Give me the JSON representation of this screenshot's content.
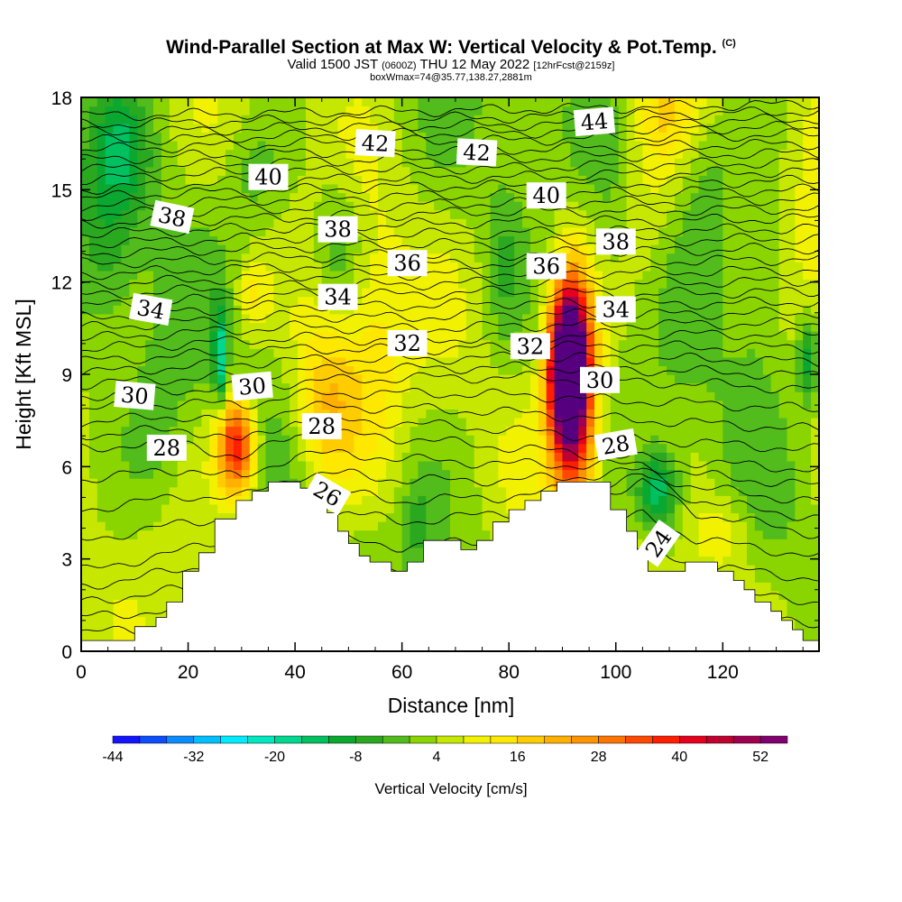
{
  "title": {
    "main": "Wind-Parallel Section at Max W: Vertical Velocity & Pot.Temp.",
    "copyright": "(C)",
    "valid_prefix": "Valid 1500 JST",
    "valid_utc": "(0600Z)",
    "valid_date": "THU 12 May 2022",
    "forecast": "[12hrFcst@2159z]",
    "box": "boxWmax=74@35.77,138.27,2881m"
  },
  "chart_data": {
    "type": "heatmap",
    "xlabel": "Distance [nm]",
    "ylabel": "Height [Kft MSL]",
    "xlim": [
      0,
      138
    ],
    "ylim": [
      0,
      18
    ],
    "x_ticks": [
      0,
      20,
      40,
      60,
      80,
      100,
      120
    ],
    "y_ticks": [
      0,
      3,
      6,
      9,
      12,
      15,
      18
    ],
    "colorbar": {
      "label": "Vertical Velocity [cm/s]",
      "ticks": [
        -44,
        -32,
        -20,
        -8,
        4,
        16,
        28,
        40,
        52
      ],
      "levels": [
        -44,
        -40,
        -36,
        -32,
        -28,
        -24,
        -20,
        -16,
        -12,
        -8,
        -4,
        0,
        4,
        8,
        12,
        16,
        20,
        24,
        28,
        32,
        36,
        40,
        44,
        48,
        52,
        56
      ],
      "colors": [
        "#1414ff",
        "#0b4dff",
        "#0a8bff",
        "#00bfff",
        "#00eaff",
        "#00e8bf",
        "#00d890",
        "#00c060",
        "#0aa830",
        "#2aa820",
        "#52bc1c",
        "#8ad400",
        "#c6e800",
        "#f2f200",
        "#ffe800",
        "#ffcc00",
        "#ffb000",
        "#ff9400",
        "#ff7400",
        "#ff4800",
        "#ff1e00",
        "#e6001e",
        "#c0002e",
        "#a00050",
        "#80006e",
        "#560080"
      ]
    },
    "terrain": [
      [
        0,
        0.35
      ],
      [
        10,
        0.35
      ],
      [
        10,
        0.8
      ],
      [
        14,
        0.8
      ],
      [
        14,
        1.1
      ],
      [
        16,
        1.1
      ],
      [
        16,
        1.6
      ],
      [
        19,
        1.6
      ],
      [
        19,
        2.6
      ],
      [
        22,
        2.6
      ],
      [
        22,
        3.2
      ],
      [
        25,
        3.2
      ],
      [
        25,
        4.3
      ],
      [
        29,
        4.3
      ],
      [
        29,
        4.9
      ],
      [
        32,
        4.9
      ],
      [
        32,
        5.2
      ],
      [
        35,
        5.2
      ],
      [
        35,
        5.5
      ],
      [
        41,
        5.5
      ],
      [
        41,
        5.3
      ],
      [
        44,
        5.3
      ],
      [
        44,
        4.9
      ],
      [
        46,
        4.9
      ],
      [
        46,
        4.5
      ],
      [
        48,
        4.5
      ],
      [
        48,
        3.9
      ],
      [
        50,
        3.9
      ],
      [
        50,
        3.5
      ],
      [
        52,
        3.5
      ],
      [
        52,
        3.1
      ],
      [
        54,
        3.1
      ],
      [
        54,
        2.9
      ],
      [
        58,
        2.9
      ],
      [
        58,
        2.6
      ],
      [
        61,
        2.6
      ],
      [
        61,
        2.9
      ],
      [
        64,
        2.9
      ],
      [
        64,
        3.6
      ],
      [
        71,
        3.6
      ],
      [
        71,
        3.3
      ],
      [
        74,
        3.3
      ],
      [
        74,
        3.6
      ],
      [
        77,
        3.6
      ],
      [
        77,
        4.2
      ],
      [
        80,
        4.2
      ],
      [
        80,
        4.6
      ],
      [
        83,
        4.6
      ],
      [
        83,
        4.9
      ],
      [
        86,
        4.9
      ],
      [
        86,
        5.2
      ],
      [
        89,
        5.2
      ],
      [
        89,
        5.5
      ],
      [
        99,
        5.5
      ],
      [
        99,
        4.6
      ],
      [
        102,
        4.6
      ],
      [
        102,
        3.9
      ],
      [
        104,
        3.9
      ],
      [
        104,
        3.3
      ],
      [
        106,
        3.3
      ],
      [
        106,
        2.6
      ],
      [
        113,
        2.6
      ],
      [
        113,
        2.9
      ],
      [
        119,
        2.9
      ],
      [
        119,
        2.6
      ],
      [
        122,
        2.6
      ],
      [
        122,
        2.3
      ],
      [
        124,
        2.3
      ],
      [
        124,
        2.0
      ],
      [
        126,
        2.0
      ],
      [
        126,
        1.6
      ],
      [
        129,
        1.6
      ],
      [
        129,
        1.3
      ],
      [
        131,
        1.3
      ],
      [
        131,
        1.0
      ],
      [
        133,
        1.0
      ],
      [
        133,
        0.7
      ],
      [
        135,
        0.7
      ],
      [
        135,
        0.35
      ],
      [
        138,
        0.35
      ]
    ],
    "contours": [
      {
        "theta": 24,
        "path": [
          [
            0,
            0.6
          ],
          [
            25,
            0.8
          ],
          [
            60,
            1.0
          ],
          [
            100,
            1.2
          ],
          [
            138,
            0.9
          ]
        ]
      },
      {
        "theta": 26,
        "path": [
          [
            0,
            2.6
          ],
          [
            20,
            3.3
          ],
          [
            40,
            4.3
          ],
          [
            50,
            4.5
          ],
          [
            60,
            4.2
          ],
          [
            80,
            4.5
          ],
          [
            95,
            5.0
          ],
          [
            105,
            5.5
          ],
          [
            115,
            4.5
          ],
          [
            138,
            3.8
          ]
        ]
      },
      {
        "theta": 28,
        "path": [
          [
            0,
            6.6
          ],
          [
            20,
            6.8
          ],
          [
            30,
            6.2
          ],
          [
            40,
            7.1
          ],
          [
            55,
            7.0
          ],
          [
            75,
            6.7
          ],
          [
            95,
            6.4
          ],
          [
            110,
            6.2
          ],
          [
            138,
            5.9
          ]
        ]
      },
      {
        "theta": 30,
        "path": [
          [
            0,
            8.3
          ],
          [
            20,
            8.5
          ],
          [
            30,
            8.6
          ],
          [
            45,
            8.8
          ],
          [
            65,
            8.9
          ],
          [
            85,
            8.9
          ],
          [
            95,
            8.8
          ],
          [
            115,
            8.7
          ],
          [
            138,
            8.5
          ]
        ]
      },
      {
        "theta": 32,
        "path": [
          [
            0,
            9.8
          ],
          [
            20,
            10.0
          ],
          [
            40,
            10.2
          ],
          [
            60,
            10.1
          ],
          [
            80,
            10.2
          ],
          [
            100,
            10.3
          ],
          [
            138,
            10.3
          ]
        ]
      },
      {
        "theta": 34,
        "path": [
          [
            0,
            11.2
          ],
          [
            20,
            11.4
          ],
          [
            40,
            11.6
          ],
          [
            60,
            11.6
          ],
          [
            80,
            11.7
          ],
          [
            100,
            11.6
          ],
          [
            138,
            11.7
          ]
        ]
      },
      {
        "theta": 36,
        "path": [
          [
            0,
            12.6
          ],
          [
            20,
            12.7
          ],
          [
            40,
            12.8
          ],
          [
            60,
            12.9
          ],
          [
            80,
            12.9
          ],
          [
            100,
            13.0
          ],
          [
            138,
            13.1
          ]
        ]
      },
      {
        "theta": 38,
        "path": [
          [
            0,
            13.9
          ],
          [
            20,
            14.0
          ],
          [
            40,
            14.1
          ],
          [
            60,
            14.2
          ],
          [
            80,
            14.3
          ],
          [
            100,
            14.3
          ],
          [
            138,
            14.4
          ]
        ]
      },
      {
        "theta": 40,
        "path": [
          [
            0,
            15.0
          ],
          [
            20,
            15.2
          ],
          [
            40,
            15.3
          ],
          [
            60,
            15.4
          ],
          [
            80,
            15.4
          ],
          [
            100,
            15.5
          ],
          [
            138,
            15.6
          ]
        ]
      },
      {
        "theta": 42,
        "path": [
          [
            0,
            16.3
          ],
          [
            20,
            16.4
          ],
          [
            40,
            16.5
          ],
          [
            60,
            16.6
          ],
          [
            80,
            16.6
          ],
          [
            100,
            16.7
          ],
          [
            138,
            16.8
          ]
        ]
      },
      {
        "theta": 44,
        "path": [
          [
            0,
            17.4
          ],
          [
            40,
            17.5
          ],
          [
            80,
            17.6
          ],
          [
            110,
            17.7
          ],
          [
            138,
            17.8
          ]
        ]
      }
    ],
    "contour_labels": [
      {
        "text": "44",
        "x": 96,
        "y": 17.2,
        "rot": -5
      },
      {
        "text": "42",
        "x": 55,
        "y": 16.5,
        "rot": 3
      },
      {
        "text": "42",
        "x": 74,
        "y": 16.2,
        "rot": 3
      },
      {
        "text": "40",
        "x": 35,
        "y": 15.4,
        "rot": 0
      },
      {
        "text": "40",
        "x": 87,
        "y": 14.8,
        "rot": 0
      },
      {
        "text": "38",
        "x": 17,
        "y": 14.1,
        "rot": 12
      },
      {
        "text": "38",
        "x": 48,
        "y": 13.7,
        "rot": 0
      },
      {
        "text": "38",
        "x": 100,
        "y": 13.3,
        "rot": 0
      },
      {
        "text": "36",
        "x": 61,
        "y": 12.6,
        "rot": 0
      },
      {
        "text": "36",
        "x": 87,
        "y": 12.5,
        "rot": 0
      },
      {
        "text": "34",
        "x": 13,
        "y": 11.1,
        "rot": 10
      },
      {
        "text": "34",
        "x": 48,
        "y": 11.5,
        "rot": 0
      },
      {
        "text": "34",
        "x": 100,
        "y": 11.1,
        "rot": 0
      },
      {
        "text": "32",
        "x": 61,
        "y": 10.0,
        "rot": 0
      },
      {
        "text": "32",
        "x": 84,
        "y": 9.9,
        "rot": 0
      },
      {
        "text": "30",
        "x": 32,
        "y": 8.6,
        "rot": -5
      },
      {
        "text": "30",
        "x": 10,
        "y": 8.3,
        "rot": 5
      },
      {
        "text": "30",
        "x": 97,
        "y": 8.8,
        "rot": 0
      },
      {
        "text": "28",
        "x": 45,
        "y": 7.3,
        "rot": 0
      },
      {
        "text": "28",
        "x": 16,
        "y": 6.6,
        "rot": 0
      },
      {
        "text": "28",
        "x": 100,
        "y": 6.7,
        "rot": -10
      },
      {
        "text": "26",
        "x": 46,
        "y": 5.1,
        "rot": 30
      },
      {
        "text": "24",
        "x": 108,
        "y": 3.5,
        "rot": -55
      }
    ],
    "features": [
      {
        "x": 91,
        "y": 9.2,
        "w": 56,
        "rx": 3.5,
        "ry": 2.4
      },
      {
        "x": 92,
        "y": 8.5,
        "w": 40,
        "rx": 4,
        "ry": 4
      },
      {
        "x": 29,
        "y": 6.7,
        "w": 38,
        "rx": 3.5,
        "ry": 1.6
      },
      {
        "x": 46,
        "y": 8.0,
        "w": 18,
        "rx": 6,
        "ry": 3
      },
      {
        "x": 32,
        "y": 11.5,
        "w": 10,
        "rx": 3,
        "ry": 1.2
      },
      {
        "x": 55,
        "y": 9.5,
        "w": 10,
        "rx": 6,
        "ry": 4
      },
      {
        "x": 100,
        "y": 2.8,
        "w": 10,
        "rx": 4,
        "ry": 1
      },
      {
        "x": 120,
        "y": 3.8,
        "w": 8,
        "rx": 5,
        "ry": 1.2
      },
      {
        "x": 106,
        "y": 14.5,
        "w": 6,
        "rx": 5,
        "ry": 4
      },
      {
        "x": 110,
        "y": 17.5,
        "w": 8,
        "rx": 6,
        "ry": 1.5
      },
      {
        "x": 138,
        "y": 11.0,
        "w": 6,
        "rx": 6,
        "ry": 6
      },
      {
        "x": 63,
        "y": 4.0,
        "w": -6,
        "rx": 2.5,
        "ry": 1.5
      },
      {
        "x": 26,
        "y": 9.5,
        "w": -20,
        "rx": 1.2,
        "ry": 1.6
      },
      {
        "x": 108,
        "y": 5.2,
        "w": -20,
        "rx": 4,
        "ry": 1.4
      },
      {
        "x": 5,
        "y": 13.5,
        "w": -8,
        "rx": 6,
        "ry": 3.5
      },
      {
        "x": 8,
        "y": 16.5,
        "w": -8,
        "rx": 5,
        "ry": 2
      },
      {
        "x": 48,
        "y": 13.2,
        "w": -8,
        "rx": 4,
        "ry": 2
      },
      {
        "x": 32,
        "y": 15.5,
        "w": -5,
        "rx": 5,
        "ry": 1.5
      },
      {
        "x": 136,
        "y": 9.5,
        "w": -16,
        "rx": 2,
        "ry": 1.5
      },
      {
        "x": 79,
        "y": 12.5,
        "w": -6,
        "rx": 3,
        "ry": 3
      },
      {
        "x": 127,
        "y": 12.0,
        "w": -6,
        "rx": 5,
        "ry": 3
      },
      {
        "x": 14,
        "y": 7.5,
        "w": -5,
        "rx": 5,
        "ry": 2.5
      },
      {
        "x": 117,
        "y": 15.5,
        "w": -6,
        "rx": 5,
        "ry": 2.5
      }
    ],
    "background_w": 3
  }
}
